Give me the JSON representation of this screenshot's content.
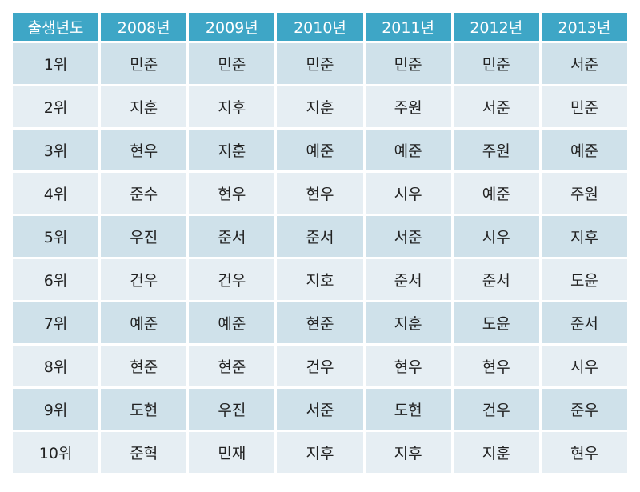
{
  "table": {
    "headers": [
      "출생년도",
      "2008년",
      "2009년",
      "2010년",
      "2011년",
      "2012년",
      "2013년"
    ],
    "rows": [
      [
        "1위",
        "민준",
        "민준",
        "민준",
        "민준",
        "민준",
        "서준"
      ],
      [
        "2위",
        "지훈",
        "지후",
        "지훈",
        "주원",
        "서준",
        "민준"
      ],
      [
        "3위",
        "현우",
        "지훈",
        "예준",
        "예준",
        "주원",
        "예준"
      ],
      [
        "4위",
        "준수",
        "현우",
        "현우",
        "시우",
        "예준",
        "주원"
      ],
      [
        "5위",
        "우진",
        "준서",
        "준서",
        "서준",
        "시우",
        "지후"
      ],
      [
        "6위",
        "건우",
        "건우",
        "지호",
        "준서",
        "준서",
        "도윤"
      ],
      [
        "7위",
        "예준",
        "예준",
        "현준",
        "지훈",
        "도윤",
        "준서"
      ],
      [
        "8위",
        "현준",
        "현준",
        "건우",
        "현우",
        "현우",
        "시우"
      ],
      [
        "9위",
        "도현",
        "우진",
        "서준",
        "도현",
        "건우",
        "준우"
      ],
      [
        "10위",
        "준혁",
        "민재",
        "지후",
        "지후",
        "지훈",
        "현우"
      ]
    ]
  },
  "colors": {
    "header_bg": "#3ea6c6",
    "header_text": "#ffffff",
    "row_dark": "#cfe1ea",
    "row_light": "#e6eef3"
  }
}
